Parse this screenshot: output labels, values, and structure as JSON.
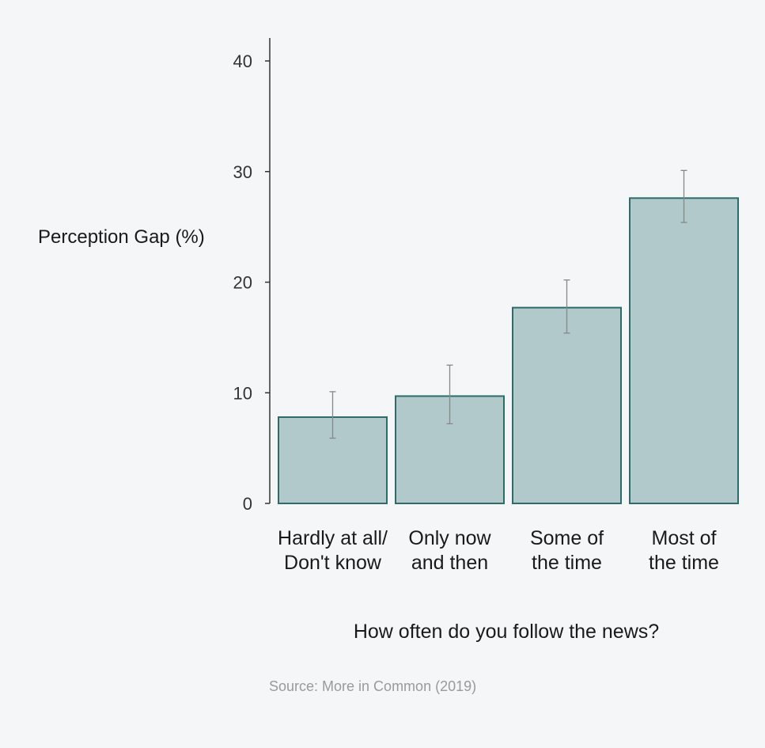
{
  "chart_data": {
    "type": "bar",
    "categories": [
      [
        "Hardly at all/",
        "Don't know"
      ],
      [
        "Only now",
        "and then"
      ],
      [
        "Some of",
        "the time"
      ],
      [
        "Most of",
        "the time"
      ]
    ],
    "values": [
      7.8,
      9.7,
      17.7,
      27.6
    ],
    "error_low": [
      5.9,
      7.2,
      15.4,
      25.4
    ],
    "error_high": [
      10.1,
      12.5,
      20.2,
      30.1
    ],
    "ylabel": "Perception Gap (%)",
    "xlabel": "How often do you follow the news?",
    "ylim": [
      0,
      40
    ],
    "yticks": [
      0,
      10,
      20,
      30,
      40
    ],
    "grid": false,
    "source": "Source: More in Common (2019)",
    "colors": {
      "bar_fill": "#b1c9cb",
      "bar_stroke": "#2f6b6b",
      "error_bar": "#888888",
      "axis": "#333333",
      "text": "#1a1a1a",
      "source_text": "#9a9a9a",
      "background": "#f5f6f8"
    }
  }
}
